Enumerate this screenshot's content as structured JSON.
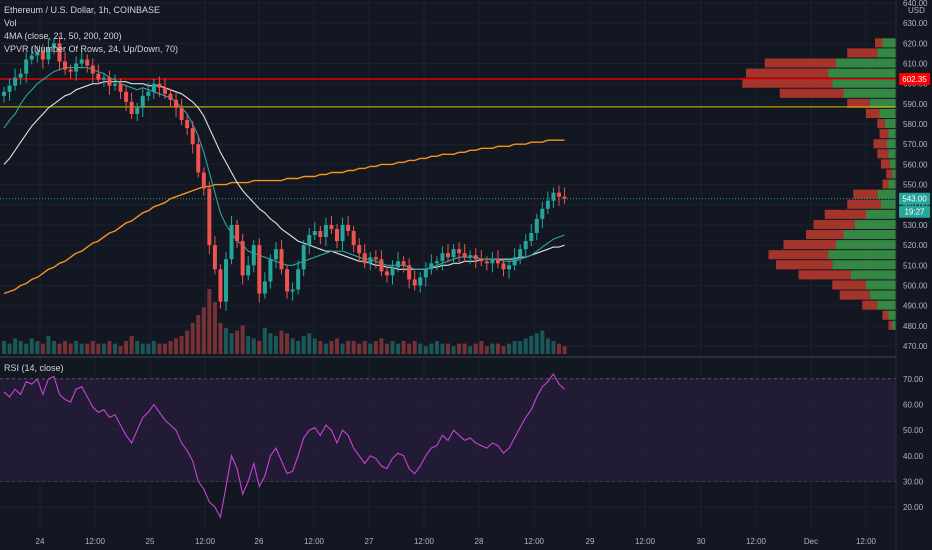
{
  "header": {
    "symbol_line": "Ethereum / U.S. Dollar, 1h, COINBASE",
    "vol_label": "Vol",
    "ma_label": "4MA (close, 21, 50, 200, 200)",
    "vpvr_label": "VPVR (Number Of Rows, 24, Up/Down, 70)",
    "rsi_label": "RSI (14, close)",
    "currency": "USD",
    "price_badge": "543.00",
    "countdown_badge": "19:27",
    "red_level_badge": "602.35"
  },
  "colors": {
    "up": "#26a69a",
    "down": "#ef5350",
    "ma_short": "#26a69a",
    "ma_mid": "#e0e0e0",
    "ma_long": "#f7931a",
    "red_line": "#ff0000",
    "yellow_line": "#d4c400",
    "rsi_line": "#c844d4",
    "rsi_band": "#2a1e3d",
    "vp_up": "#3c9b4a",
    "vp_down": "#c0392b"
  },
  "axes": {
    "price_ticks": [
      "640.00",
      "630.00",
      "620.00",
      "610.00",
      "600.00",
      "590.00",
      "580.00",
      "570.00",
      "560.00",
      "550.00",
      "540.00",
      "530.00",
      "520.00",
      "510.00",
      "500.00",
      "490.00",
      "480.00",
      "470.00"
    ],
    "rsi_ticks": [
      "70.00",
      "60.00",
      "50.00",
      "40.00",
      "30.00",
      "20.00"
    ],
    "time_ticks": [
      "24",
      "12:00",
      "25",
      "12:00",
      "26",
      "12:00",
      "27",
      "12:00",
      "28",
      "12:00",
      "29",
      "12:00",
      "30",
      "12:00",
      "Dec",
      "12:00"
    ]
  },
  "chart_data": {
    "type": "candlestick",
    "title": "Ethereum / U.S. Dollar, 1h, COINBASE",
    "ylim": [
      465,
      642
    ],
    "rsi_ylim": [
      14,
      75
    ],
    "horizontal_levels": [
      602.35,
      588.5
    ],
    "current_price": 543.0,
    "close_path": [
      596,
      599,
      603,
      605,
      612,
      614,
      616,
      612,
      618,
      620,
      611,
      607,
      606,
      610,
      612,
      609,
      605,
      602,
      603,
      599,
      600,
      596,
      591,
      585,
      588,
      594,
      596,
      600,
      598,
      595,
      592,
      588,
      582,
      578,
      570,
      556,
      548,
      520,
      508,
      492,
      513,
      530,
      522,
      505,
      510,
      520,
      496,
      502,
      513,
      518,
      508,
      497,
      498,
      508,
      520,
      525,
      527,
      524,
      530,
      528,
      522,
      530,
      527,
      520,
      516,
      511,
      514,
      513,
      507,
      505,
      509,
      512,
      510,
      503,
      500,
      504,
      508,
      511,
      512,
      516,
      514,
      518,
      516,
      514,
      515,
      513,
      512,
      511,
      513,
      511,
      508,
      510,
      514,
      518,
      522,
      526,
      533,
      538,
      542,
      546,
      544,
      543
    ],
    "volume": [
      5,
      4,
      6,
      5,
      4,
      6,
      5,
      4,
      7,
      5,
      4,
      5,
      4,
      5,
      4,
      4,
      5,
      4,
      4,
      5,
      4,
      3,
      5,
      7,
      5,
      4,
      4,
      5,
      4,
      4,
      5,
      6,
      7,
      9,
      12,
      15,
      18,
      25,
      20,
      12,
      10,
      8,
      9,
      11,
      7,
      6,
      5,
      10,
      8,
      7,
      9,
      8,
      6,
      5,
      7,
      8,
      6,
      5,
      4,
      5,
      6,
      4,
      5,
      5,
      4,
      5,
      4,
      5,
      6,
      4,
      5,
      4,
      5,
      4,
      5,
      4,
      3,
      4,
      5,
      4,
      4,
      3,
      4,
      4,
      3,
      4,
      5,
      3,
      4,
      4,
      3,
      4,
      5,
      5,
      6,
      7,
      8,
      9,
      6,
      5,
      4,
      3
    ],
    "rsi": [
      65,
      63,
      66,
      64,
      69,
      68,
      70,
      64,
      70,
      71,
      64,
      62,
      61,
      66,
      67,
      63,
      59,
      57,
      58,
      55,
      56,
      52,
      48,
      45,
      50,
      55,
      57,
      60,
      57,
      54,
      52,
      50,
      45,
      42,
      38,
      30,
      27,
      22,
      20,
      16,
      28,
      40,
      35,
      25,
      30,
      37,
      28,
      32,
      40,
      43,
      38,
      33,
      34,
      40,
      47,
      50,
      51,
      48,
      52,
      50,
      45,
      50,
      48,
      43,
      40,
      37,
      40,
      39,
      36,
      35,
      39,
      41,
      40,
      35,
      33,
      36,
      40,
      43,
      44,
      48,
      46,
      50,
      48,
      46,
      47,
      45,
      44,
      43,
      45,
      44,
      41,
      43,
      47,
      51,
      55,
      58,
      63,
      67,
      69,
      72,
      68,
      66
    ],
    "ma_short_path": [
      578,
      582,
      585,
      590,
      594,
      597,
      600,
      602,
      604,
      606,
      607,
      608,
      608,
      608,
      608,
      608,
      607,
      606,
      605,
      603,
      602,
      600,
      599,
      598,
      597,
      598,
      597,
      596,
      595,
      594,
      593,
      591,
      588,
      585,
      580,
      574,
      566,
      556,
      546,
      536,
      530,
      526,
      522,
      520,
      517,
      516,
      515,
      514,
      513,
      512,
      511,
      510,
      510,
      511,
      512,
      513,
      514,
      515,
      516,
      517,
      517,
      517,
      516,
      515,
      514,
      513,
      513,
      512,
      511,
      510,
      510,
      510,
      510,
      509,
      508,
      508,
      508,
      509,
      510,
      511,
      512,
      513,
      514,
      514,
      514,
      514,
      513,
      513,
      513,
      513,
      512,
      512,
      512,
      513,
      514,
      515,
      517,
      519,
      521,
      523,
      524,
      525
    ],
    "ma_mid_path": [
      560,
      563,
      567,
      571,
      575,
      579,
      582,
      585,
      588,
      590,
      592,
      594,
      595,
      597,
      598,
      599,
      600,
      600,
      601,
      601,
      601,
      601,
      601,
      600,
      600,
      600,
      599,
      599,
      599,
      598,
      597,
      596,
      595,
      593,
      591,
      588,
      584,
      578,
      572,
      566,
      561,
      556,
      551,
      547,
      544,
      541,
      538,
      536,
      533,
      531,
      528,
      526,
      524,
      522,
      521,
      520,
      519,
      518,
      517,
      517,
      516,
      515,
      514,
      513,
      512,
      512,
      511,
      510,
      510,
      509,
      509,
      508,
      508,
      508,
      508,
      508,
      508,
      509,
      509,
      510,
      510,
      511,
      511,
      512,
      512,
      512,
      513,
      513,
      513,
      513,
      513,
      513,
      513,
      514,
      514,
      515,
      516,
      517,
      518,
      519,
      519,
      520
    ],
    "ma_long_path": [
      496,
      497,
      498,
      500,
      501,
      503,
      504,
      506,
      508,
      509,
      511,
      512,
      514,
      516,
      517,
      519,
      521,
      522,
      524,
      526,
      527,
      529,
      531,
      532,
      534,
      536,
      537,
      539,
      540,
      541,
      543,
      544,
      545,
      546,
      547,
      548,
      549,
      549,
      550,
      550,
      550,
      551,
      551,
      551,
      551,
      552,
      552,
      552,
      552,
      552,
      552,
      553,
      553,
      553,
      554,
      554,
      554,
      555,
      555,
      556,
      556,
      556,
      557,
      557,
      558,
      558,
      559,
      559,
      560,
      560,
      560,
      561,
      561,
      562,
      562,
      563,
      563,
      564,
      564,
      565,
      565,
      565,
      566,
      566,
      567,
      567,
      568,
      568,
      568,
      569,
      569,
      569,
      570,
      570,
      570,
      571,
      571,
      571,
      572,
      572,
      572,
      572
    ],
    "volume_profile": [
      {
        "price": 620,
        "up": 18,
        "down": 10
      },
      {
        "price": 615,
        "up": 25,
        "down": 40
      },
      {
        "price": 610,
        "up": 80,
        "down": 95
      },
      {
        "price": 605,
        "up": 90,
        "down": 110
      },
      {
        "price": 600,
        "up": 85,
        "down": 120
      },
      {
        "price": 595,
        "up": 70,
        "down": 85
      },
      {
        "price": 590,
        "up": 35,
        "down": 30
      },
      {
        "price": 585,
        "up": 22,
        "down": 18
      },
      {
        "price": 580,
        "up": 15,
        "down": 10
      },
      {
        "price": 575,
        "up": 10,
        "down": 12
      },
      {
        "price": 570,
        "up": 12,
        "down": 18
      },
      {
        "price": 565,
        "up": 10,
        "down": 15
      },
      {
        "price": 560,
        "up": 8,
        "down": 12
      },
      {
        "price": 555,
        "up": 5,
        "down": 8
      },
      {
        "price": 550,
        "up": 10,
        "down": 8
      },
      {
        "price": 545,
        "up": 25,
        "down": 32
      },
      {
        "price": 540,
        "up": 20,
        "down": 45
      },
      {
        "price": 535,
        "up": 40,
        "down": 55
      },
      {
        "price": 530,
        "up": 55,
        "down": 55
      },
      {
        "price": 525,
        "up": 70,
        "down": 50
      },
      {
        "price": 520,
        "up": 80,
        "down": 70
      },
      {
        "price": 515,
        "up": 90,
        "down": 80
      },
      {
        "price": 510,
        "up": 85,
        "down": 75
      },
      {
        "price": 505,
        "up": 60,
        "down": 70
      },
      {
        "price": 500,
        "up": 40,
        "down": 45
      },
      {
        "price": 495,
        "up": 35,
        "down": 40
      },
      {
        "price": 490,
        "up": 25,
        "down": 20
      },
      {
        "price": 485,
        "up": 10,
        "down": 8
      },
      {
        "price": 480,
        "up": 5,
        "down": 5
      }
    ]
  }
}
